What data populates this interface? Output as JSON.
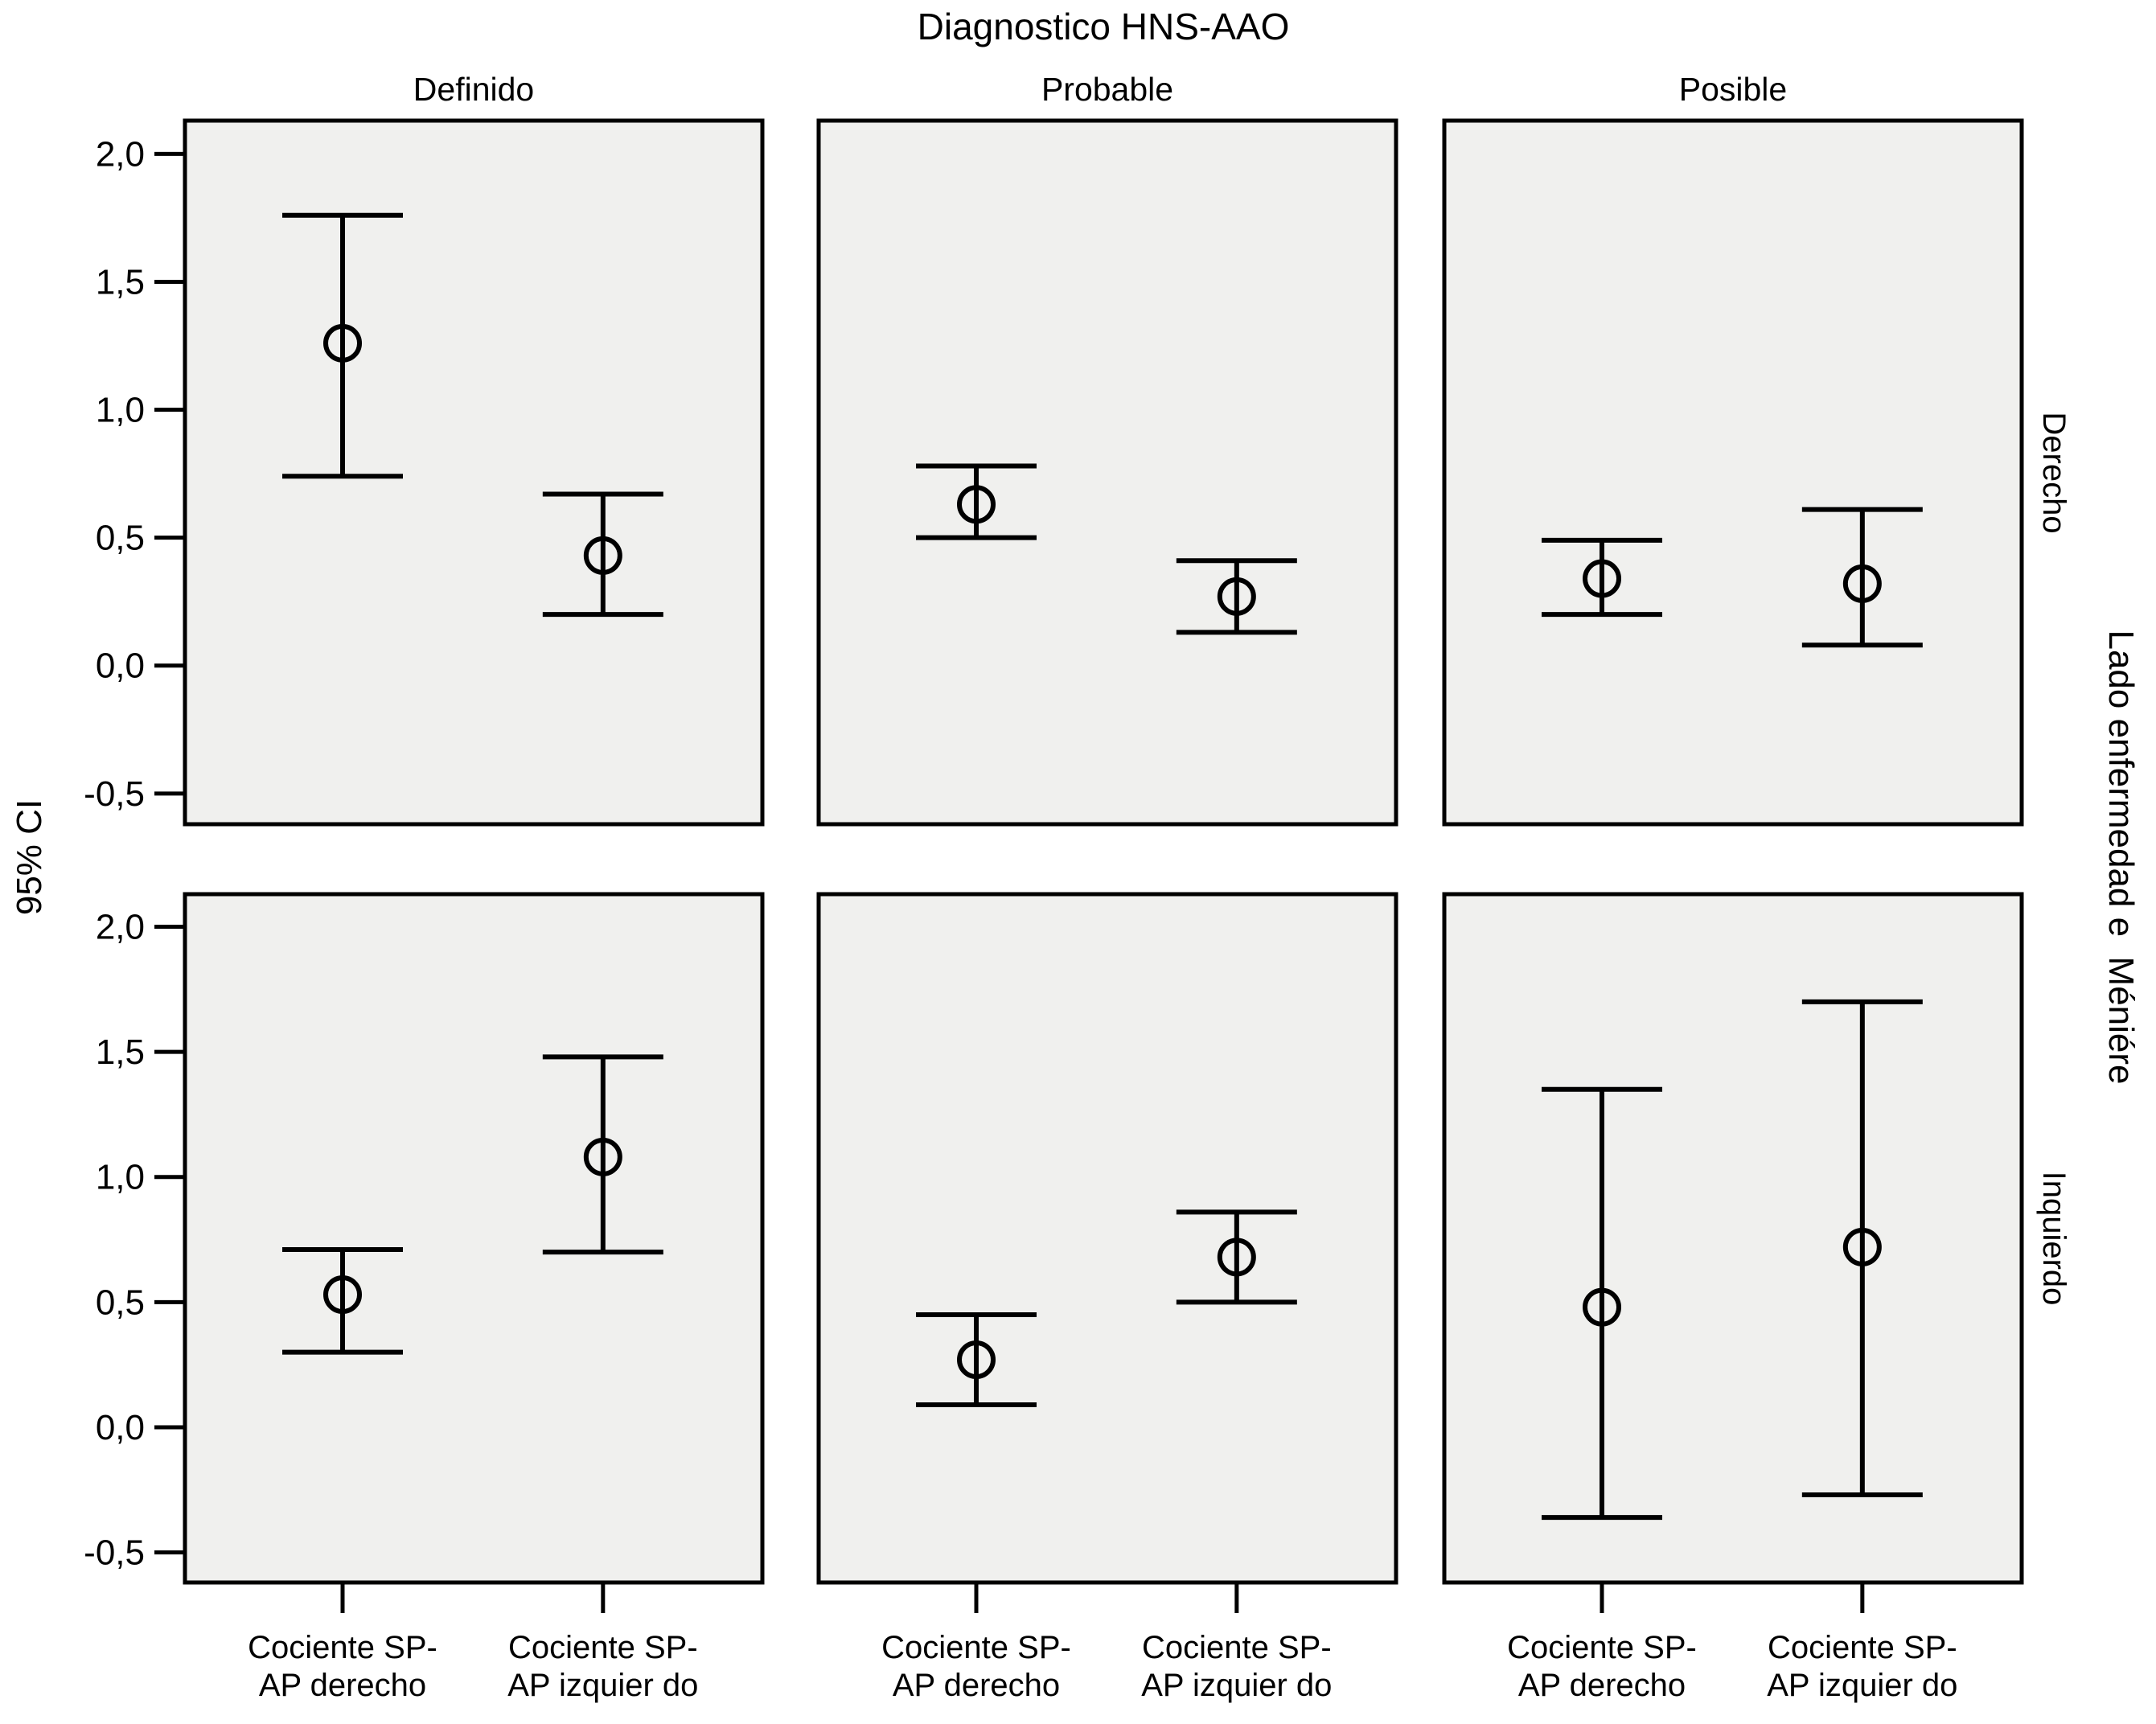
{
  "title": "Diagnostico HNS-AAO",
  "chart_data": {
    "type": "errorbar",
    "title": "Diagnostico HNS-AAO",
    "ylabel": "95% CI",
    "row_axis_label": "Lado enfermedad e  Méniére",
    "columns": [
      "Definido",
      "Probable",
      "Posible"
    ],
    "rows": [
      "Derecho",
      "Inquierdo"
    ],
    "categories": [
      {
        "full": "Cociente SP-AP derecho",
        "line1": "Cociente SP-",
        "line2": "AP derecho"
      },
      {
        "full": "Cociente SP-AP izquier do",
        "line1": "Cociente SP-",
        "line2": "AP izquier do"
      }
    ],
    "y_ticks": [
      {
        "label": "2,0",
        "value": 2.0
      },
      {
        "label": "1,5",
        "value": 1.5
      },
      {
        "label": "1,0",
        "value": 1.0
      },
      {
        "label": "0,5",
        "value": 0.5
      },
      {
        "label": "0,0",
        "value": 0.0
      },
      {
        "label": "-0,5",
        "value": -0.5
      }
    ],
    "ylim": [
      -0.62,
      2.13
    ],
    "grid": false,
    "marker": "open-circle",
    "panels": [
      {
        "row": "Derecho",
        "column": "Definido",
        "points": [
          {
            "category": "Cociente SP-AP derecho",
            "mean": 1.26,
            "ci_low": 0.74,
            "ci_high": 1.76
          },
          {
            "category": "Cociente SP-AP izquier do",
            "mean": 0.43,
            "ci_low": 0.2,
            "ci_high": 0.67
          }
        ]
      },
      {
        "row": "Derecho",
        "column": "Probable",
        "points": [
          {
            "category": "Cociente SP-AP derecho",
            "mean": 0.63,
            "ci_low": 0.5,
            "ci_high": 0.78
          },
          {
            "category": "Cociente SP-AP izquier do",
            "mean": 0.27,
            "ci_low": 0.13,
            "ci_high": 0.41
          }
        ]
      },
      {
        "row": "Derecho",
        "column": "Posible",
        "points": [
          {
            "category": "Cociente SP-AP derecho",
            "mean": 0.34,
            "ci_low": 0.2,
            "ci_high": 0.49
          },
          {
            "category": "Cociente SP-AP izquier do",
            "mean": 0.32,
            "ci_low": 0.08,
            "ci_high": 0.61
          }
        ]
      },
      {
        "row": "Inquierdo",
        "column": "Definido",
        "points": [
          {
            "category": "Cociente SP-AP derecho",
            "mean": 0.53,
            "ci_low": 0.3,
            "ci_high": 0.71
          },
          {
            "category": "Cociente SP-AP izquier do",
            "mean": 1.08,
            "ci_low": 0.7,
            "ci_high": 1.48
          }
        ]
      },
      {
        "row": "Inquierdo",
        "column": "Probable",
        "points": [
          {
            "category": "Cociente SP-AP derecho",
            "mean": 0.27,
            "ci_low": 0.09,
            "ci_high": 0.45
          },
          {
            "category": "Cociente SP-AP izquier do",
            "mean": 0.68,
            "ci_low": 0.5,
            "ci_high": 0.86
          }
        ]
      },
      {
        "row": "Inquierdo",
        "column": "Posible",
        "points": [
          {
            "category": "Cociente SP-AP derecho",
            "mean": 0.48,
            "ci_low": -0.36,
            "ci_high": 1.35
          },
          {
            "category": "Cociente SP-AP izquier do",
            "mean": 0.72,
            "ci_low": -0.27,
            "ci_high": 1.7
          }
        ]
      }
    ],
    "colors": {
      "panel_bg": "#F0F0EE",
      "line": "#000000",
      "background": "#FFFFFF"
    }
  }
}
